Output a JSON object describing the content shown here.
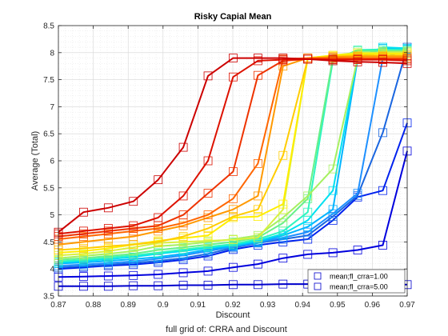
{
  "chart_data": {
    "type": "line",
    "title": "Risky Capial Mean",
    "xlabel": "Discount",
    "ylabel": "Average (Total)",
    "caption": "full grid of: CRRA and Discount",
    "xlim": [
      0.87,
      0.97
    ],
    "ylim": [
      3.5,
      8.5
    ],
    "xticks": [
      0.87,
      0.88,
      0.89,
      0.9,
      0.91,
      0.92,
      0.93,
      0.94,
      0.95,
      0.96,
      0.97
    ],
    "xtick_labels": [
      "0.87",
      "0.88",
      "0.89",
      "0.9",
      "0.91",
      "0.92",
      "0.93",
      "0.94",
      "0.95",
      "0.96",
      "0.97"
    ],
    "yticks": [
      3.5,
      4,
      4.5,
      5,
      5.5,
      6,
      6.5,
      7,
      7.5,
      8,
      8.5
    ],
    "ytick_labels": [
      "3.5",
      "4",
      "4.5",
      "5",
      "5.5",
      "6",
      "6.5",
      "7",
      "7.5",
      "8",
      "8.5"
    ],
    "grid": true,
    "minor_grid": true,
    "marker": "square",
    "legend_position": "bottom-right",
    "legend": [
      {
        "label": "mean;fl_crra=1.00",
        "color": "#0000cc"
      },
      {
        "label": "mean;fl_crra=5.00",
        "color": "#0000cc"
      }
    ],
    "x": [
      0.87,
      0.8772,
      0.8843,
      0.8915,
      0.8986,
      0.9058,
      0.9129,
      0.9201,
      0.9272,
      0.9344,
      0.9415,
      0.9487,
      0.9558,
      0.963,
      0.97
    ],
    "series": [
      {
        "color": "#0000cc",
        "values": [
          3.68,
          3.68,
          3.68,
          3.69,
          3.69,
          3.7,
          3.7,
          3.71,
          3.71,
          3.72,
          3.72,
          3.71,
          3.71,
          3.71,
          3.71
        ]
      },
      {
        "color": "#0000dd",
        "values": [
          3.85,
          3.86,
          3.87,
          3.88,
          3.9,
          3.93,
          3.96,
          4.03,
          4.09,
          4.2,
          4.27,
          4.3,
          4.35,
          4.44,
          6.18
        ]
      },
      {
        "color": "#0022ee",
        "values": [
          4.0,
          4.03,
          4.06,
          4.08,
          4.12,
          4.17,
          4.24,
          4.36,
          4.44,
          4.5,
          4.55,
          4.9,
          5.33,
          5.45,
          6.7
        ]
      },
      {
        "color": "#1a66e0",
        "values": [
          4.03,
          4.05,
          4.08,
          4.11,
          4.15,
          4.2,
          4.28,
          4.39,
          4.48,
          4.55,
          4.62,
          4.97,
          5.36,
          6.52,
          8.1
        ]
      },
      {
        "color": "#1e90ff",
        "values": [
          4.06,
          4.08,
          4.11,
          4.14,
          4.19,
          4.25,
          4.33,
          4.41,
          4.49,
          4.58,
          4.68,
          5.02,
          5.4,
          7.9,
          8.06
        ]
      },
      {
        "color": "#00b4ff",
        "values": [
          4.1,
          4.12,
          4.15,
          4.18,
          4.22,
          4.28,
          4.36,
          4.42,
          4.5,
          4.62,
          4.78,
          5.1,
          7.88,
          8.08,
          8.06
        ]
      },
      {
        "color": "#00e0f0",
        "values": [
          4.12,
          4.15,
          4.18,
          4.22,
          4.28,
          4.33,
          4.39,
          4.44,
          4.52,
          4.65,
          4.9,
          5.45,
          7.9,
          8.1,
          8.08
        ]
      },
      {
        "color": "#2ef5c0",
        "values": [
          4.14,
          4.17,
          4.21,
          4.25,
          4.3,
          4.36,
          4.41,
          4.46,
          4.55,
          4.7,
          5.05,
          7.85,
          8.05,
          8.06,
          8.05
        ]
      },
      {
        "color": "#66f08a",
        "values": [
          4.17,
          4.2,
          4.24,
          4.28,
          4.35,
          4.4,
          4.45,
          4.5,
          4.58,
          4.85,
          5.3,
          7.9,
          8.03,
          8.03,
          8.03
        ]
      },
      {
        "color": "#a6f060",
        "values": [
          4.2,
          4.24,
          4.28,
          4.33,
          4.42,
          4.45,
          4.5,
          4.55,
          4.62,
          4.95,
          5.35,
          5.85,
          7.9,
          8.02,
          8.02
        ]
      },
      {
        "color": "#d8f040",
        "values": [
          4.25,
          4.28,
          4.33,
          4.4,
          4.48,
          4.5,
          4.52,
          4.54,
          4.58,
          5.1,
          7.9,
          7.95,
          8.0,
          8.0,
          8.0
        ]
      },
      {
        "color": "#ffee00",
        "values": [
          4.3,
          4.33,
          4.38,
          4.45,
          4.52,
          4.57,
          4.62,
          4.95,
          4.97,
          5.2,
          7.9,
          7.95,
          7.98,
          7.98,
          7.98
        ]
      },
      {
        "color": "#ffcc00",
        "values": [
          4.35,
          4.38,
          4.42,
          4.45,
          4.5,
          4.6,
          4.75,
          4.97,
          5.1,
          6.1,
          7.88,
          7.93,
          7.95,
          7.95,
          7.95
        ]
      },
      {
        "color": "#ff9900",
        "values": [
          4.45,
          4.5,
          4.55,
          4.6,
          4.7,
          4.8,
          4.95,
          5.1,
          5.35,
          7.75,
          7.9,
          7.92,
          7.93,
          7.93,
          7.93
        ]
      },
      {
        "color": "#ff6600",
        "values": [
          4.55,
          4.6,
          4.65,
          4.7,
          4.75,
          4.85,
          5.0,
          5.3,
          5.95,
          7.88,
          7.9,
          7.9,
          7.9,
          7.9,
          7.9
        ]
      },
      {
        "color": "#ee3300",
        "values": [
          4.6,
          4.65,
          4.7,
          4.75,
          4.8,
          5.0,
          5.4,
          5.8,
          7.58,
          7.85,
          7.88,
          7.88,
          7.88,
          7.88,
          7.88
        ]
      },
      {
        "color": "#dd1100",
        "values": [
          4.65,
          4.7,
          4.75,
          4.8,
          4.95,
          5.35,
          6.0,
          7.55,
          7.85,
          7.87,
          7.88,
          7.87,
          7.87,
          7.87,
          7.85
        ]
      },
      {
        "color": "#cc0000",
        "values": [
          4.68,
          5.05,
          5.13,
          5.25,
          5.65,
          6.25,
          7.57,
          7.9,
          7.9,
          7.9,
          7.88,
          7.85,
          7.83,
          7.82,
          7.8
        ]
      }
    ]
  }
}
